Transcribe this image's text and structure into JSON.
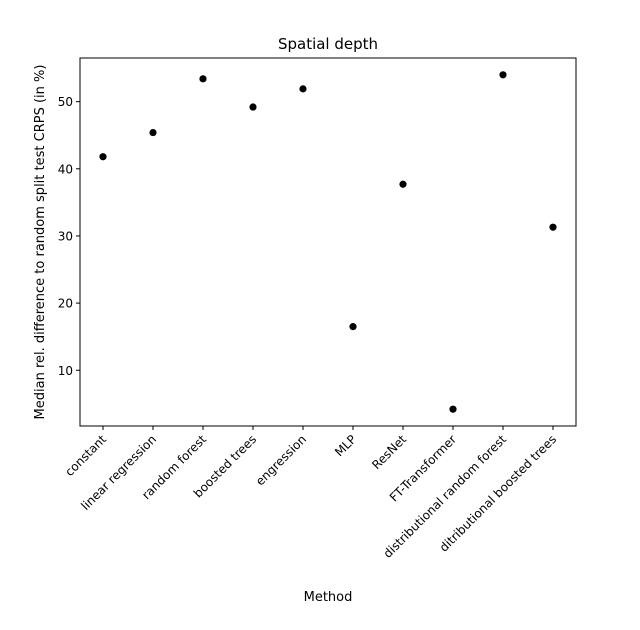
{
  "chart_data": {
    "type": "scatter",
    "title": "Spatial depth",
    "xlabel": "Method",
    "ylabel": "Median rel. difference to random split test CRPS (in %)",
    "categories": [
      "constant",
      "linear regression",
      "random forest",
      "boosted trees",
      "engression",
      "MLP",
      "ResNet",
      "FT-Transformer",
      "distributional random forest",
      "ditributional boosted trees"
    ],
    "values": [
      41.8,
      45.4,
      53.4,
      49.2,
      51.9,
      16.5,
      37.7,
      4.2,
      54.0,
      31.3
    ],
    "yticks": [
      10,
      20,
      30,
      40,
      50
    ],
    "ylim": [
      1.7,
      56.5
    ],
    "grid": false,
    "marker_color": "#000000"
  }
}
